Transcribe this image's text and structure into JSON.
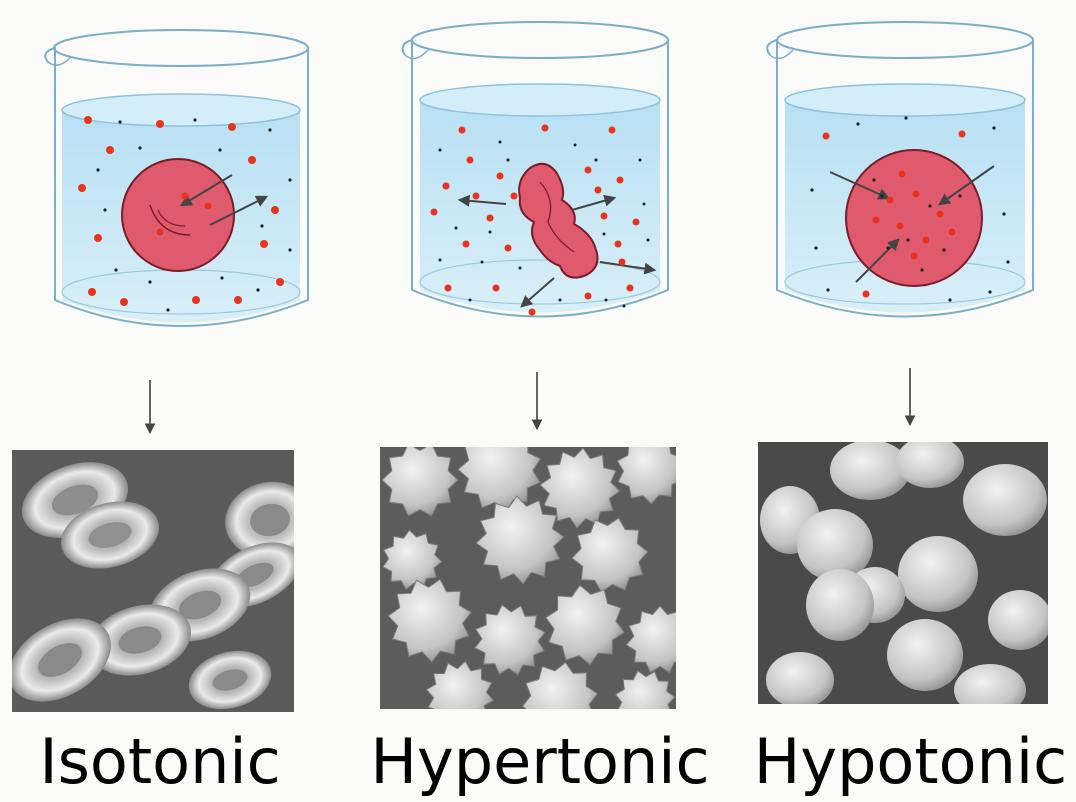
{
  "panels": [
    {
      "id": "isotonic",
      "label": "Isotonic"
    },
    {
      "id": "hypertonic",
      "label": "Hypertonic"
    },
    {
      "id": "hypotonic",
      "label": "Hypotonic"
    }
  ],
  "colors": {
    "water": "#bfe3f4",
    "water_surface": "#d8f0fa",
    "glass_edge": "#7aaecb",
    "cell_fill": "#e05a6e",
    "cell_stroke": "#7a1d2a",
    "solute_red": "#e8341c",
    "solute_black": "#222222",
    "arrow": "#444444",
    "micro_bg": "#4e4e4e",
    "micro_cell": "#cfcfcf"
  }
}
